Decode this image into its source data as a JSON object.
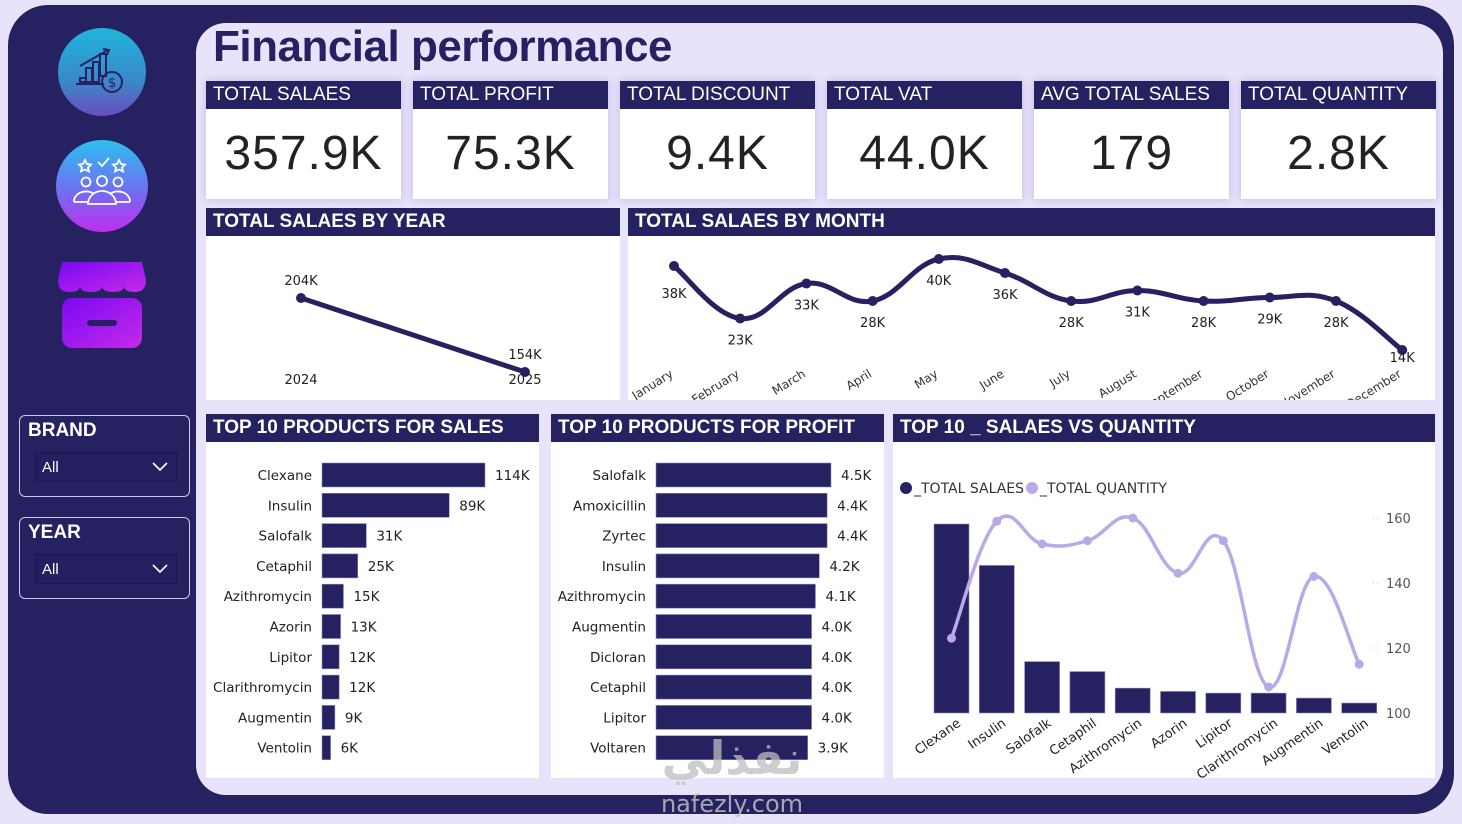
{
  "page": {
    "title": "Financial performance"
  },
  "colors": {
    "primary": "#262262",
    "background": "#e8e2fa",
    "accent_light": "#b9a9e8",
    "panel": "#ffffff"
  },
  "sidebar": {
    "icons": [
      {
        "name": "financial-growth-icon"
      },
      {
        "name": "customers-rating-icon"
      },
      {
        "name": "store-icon"
      }
    ],
    "slicers": [
      {
        "title": "BRAND",
        "value": "All"
      },
      {
        "title": "YEAR",
        "value": "All"
      }
    ]
  },
  "kpis": [
    {
      "label": "TOTAL SALAES",
      "value": "357.9K"
    },
    {
      "label": "TOTAL PROFIT",
      "value": "75.3K"
    },
    {
      "label": "TOTAL DISCOUNT",
      "value": "9.4K"
    },
    {
      "label": "TOTAL VAT",
      "value": "44.0K"
    },
    {
      "label": "AVG TOTAL SALES",
      "value": "179"
    },
    {
      "label": "TOTAL QUANTITY",
      "value": "2.8K"
    }
  ],
  "watermark": {
    "arabic": "نفذلي",
    "text": "nafezly.com"
  },
  "chart_data": [
    {
      "id": "sales_by_year",
      "type": "line",
      "title": "TOTAL SALAES BY YEAR",
      "categories": [
        "2024",
        "2025"
      ],
      "values": [
        204,
        154
      ],
      "labels": [
        "204K",
        "154K"
      ],
      "unit": "K",
      "ylim": [
        0,
        220
      ],
      "grid": false
    },
    {
      "id": "sales_by_month",
      "type": "line",
      "title": "TOTAL SALAES BY MONTH",
      "categories": [
        "January",
        "February",
        "March",
        "April",
        "May",
        "June",
        "July",
        "August",
        "September",
        "October",
        "November",
        "December"
      ],
      "values": [
        38,
        23,
        33,
        28,
        40,
        36,
        28,
        31,
        28,
        29,
        28,
        14
      ],
      "labels": [
        "38K",
        "23K",
        "33K",
        "28K",
        "40K",
        "36K",
        "28K",
        "31K",
        "28K",
        "29K",
        "28K",
        "14K"
      ],
      "unit": "K",
      "grid": false
    },
    {
      "id": "top10_sales",
      "type": "bar",
      "orientation": "horizontal",
      "title": "TOP 10 PRODUCTS FOR SALES",
      "categories": [
        "Clexane",
        "Insulin",
        "Salofalk",
        "Cetaphil",
        "Azithromycin",
        "Azorin",
        "Lipitor",
        "Clarithromycin",
        "Augmentin",
        "Ventolin"
      ],
      "values": [
        114,
        89,
        31,
        25,
        15,
        13,
        12,
        12,
        9,
        6
      ],
      "labels": [
        "114K",
        "89K",
        "31K",
        "25K",
        "15K",
        "13K",
        "12K",
        "12K",
        "9K",
        "6K"
      ],
      "unit": "K"
    },
    {
      "id": "top10_profit",
      "type": "bar",
      "orientation": "horizontal",
      "title": "TOP 10 PRODUCTS FOR PROFIT",
      "categories": [
        "Salofalk",
        "Amoxicillin",
        "Zyrtec",
        "Insulin",
        "Azithromycin",
        "Augmentin",
        "Dicloran",
        "Cetaphil",
        "Lipitor",
        "Voltaren"
      ],
      "values": [
        4.5,
        4.4,
        4.4,
        4.2,
        4.1,
        4.0,
        4.0,
        4.0,
        4.0,
        3.9
      ],
      "labels": [
        "4.5K",
        "4.4K",
        "4.4K",
        "4.2K",
        "4.1K",
        "4.0K",
        "4.0K",
        "4.0K",
        "4.0K",
        "3.9K"
      ],
      "unit": "K"
    },
    {
      "id": "sales_vs_quantity",
      "type": "bar",
      "title": "TOP 10 _ SALAES VS QUANTITY",
      "categories": [
        "Clexane",
        "Insulin",
        "Salofalk",
        "Cetaphil",
        "Azithromycin",
        "Azorin",
        "Lipitor",
        "Clarithromycin",
        "Augmentin",
        "Ventolin"
      ],
      "series": [
        {
          "name": "_TOTAL SALAES",
          "type": "bar",
          "color": "#262262",
          "values": [
            114,
            89,
            31,
            25,
            15,
            13,
            12,
            12,
            9,
            6
          ]
        },
        {
          "name": "_TOTAL QUANTITY",
          "type": "line",
          "color": "#b9a9e8",
          "axis": "right",
          "values": [
            123,
            159,
            152,
            153,
            160,
            143,
            153,
            108,
            142,
            115
          ]
        }
      ],
      "y2_ticks": [
        100,
        120,
        140,
        160
      ],
      "y2lim": [
        100,
        160
      ],
      "legend": "top-left"
    }
  ]
}
